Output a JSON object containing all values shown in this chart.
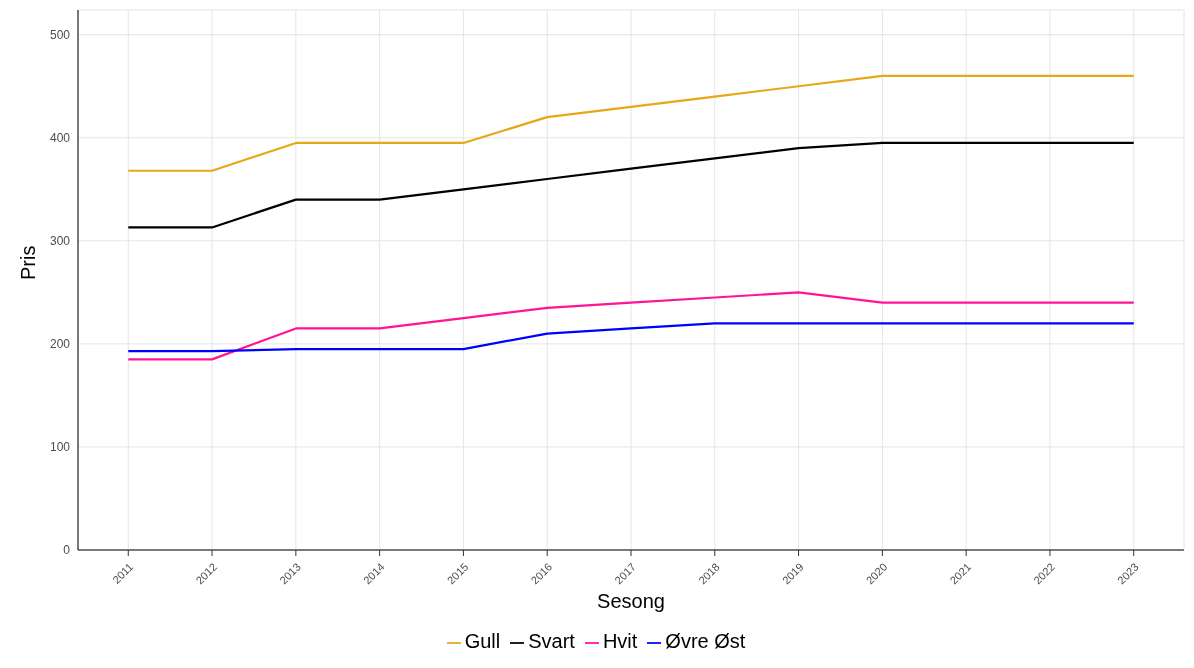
{
  "chart_data": {
    "type": "line",
    "xlabel": "Sesong",
    "ylabel": "Pris",
    "x": [
      2011,
      2012,
      2013,
      2014,
      2015,
      2016,
      2017,
      2018,
      2019,
      2020,
      2021,
      2022,
      2023
    ],
    "series": [
      {
        "name": "Gull",
        "color": "#e6a817",
        "values": [
          368,
          368,
          395,
          395,
          395,
          420,
          430,
          440,
          450,
          460,
          460,
          460,
          460
        ]
      },
      {
        "name": "Svart",
        "color": "#000000",
        "values": [
          313,
          313,
          340,
          340,
          350,
          360,
          370,
          380,
          390,
          395,
          395,
          395,
          395
        ]
      },
      {
        "name": "Hvit",
        "color": "#ff1493",
        "values": [
          185,
          185,
          215,
          215,
          225,
          235,
          240,
          245,
          250,
          240,
          240,
          240,
          240
        ]
      },
      {
        "name": "Øvre Øst",
        "color": "#0000ff",
        "values": [
          193,
          193,
          195,
          195,
          195,
          210,
          215,
          220,
          220,
          220,
          220,
          220,
          220
        ]
      }
    ],
    "xlim": [
      2010.4,
      2023.6
    ],
    "xticks": [
      2011,
      2012,
      2013,
      2014,
      2015,
      2016,
      2017,
      2018,
      2019,
      2020,
      2021,
      2022,
      2023
    ],
    "ylim": [
      0,
      524
    ],
    "yticks": [
      0,
      100,
      200,
      300,
      400,
      500
    ],
    "grid": true,
    "legend": "bottom",
    "marker": "none",
    "line_style": "solid"
  }
}
